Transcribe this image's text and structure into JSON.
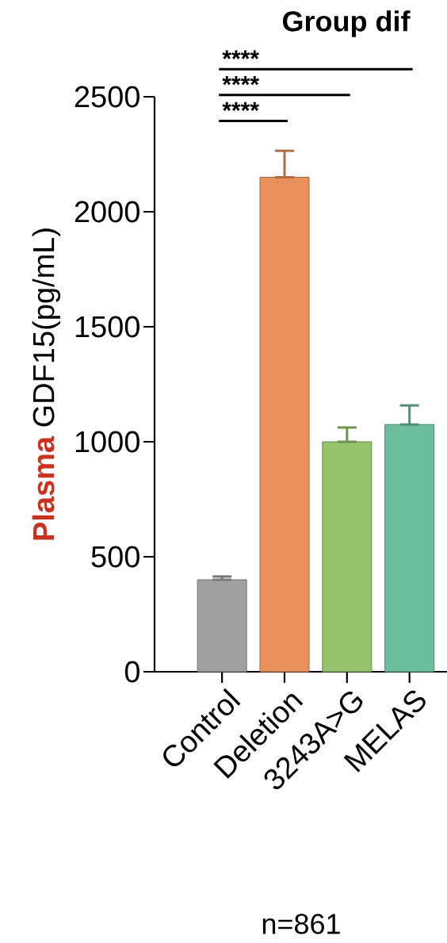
{
  "chart_data": {
    "type": "bar",
    "title": "Group dif",
    "ylabel": "**Plasma** GDF15(pg/mL)",
    "categories": [
      "Control",
      "Deletion",
      "3243A>G",
      "MELAS"
    ],
    "values": [
      400,
      2150,
      1000,
      1075
    ],
    "errors": [
      [
        400,
        414
      ],
      [
        2150,
        2265
      ],
      [
        1000,
        1062
      ],
      [
        1075,
        1158
      ]
    ],
    "colors": [
      "#a0a0a0",
      "#e8915c",
      "#95c26a",
      "#6bbf9f"
    ],
    "ylim": [
      0,
      2500
    ],
    "yticks": [
      0,
      500,
      1000,
      1500,
      2000,
      2500
    ],
    "annotations": [
      "****",
      "****",
      "****",
      "n=861"
    ]
  }
}
